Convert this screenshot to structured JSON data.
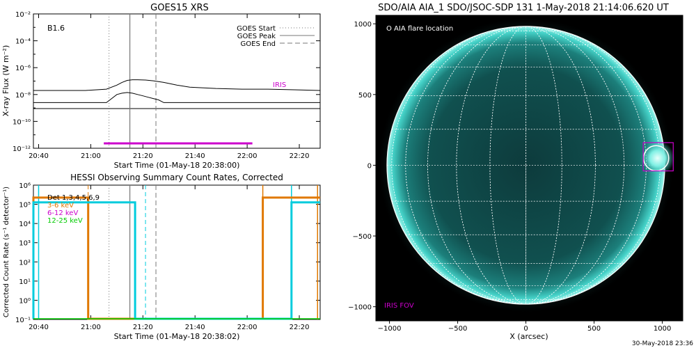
{
  "chart_data": [
    {
      "type": "line",
      "title": "GOES15 XRS",
      "xlabel": "Start Time (01-May-18 20:38:00)",
      "ylabel": "X-ray Flux (W m⁻²)",
      "annotation": "B1.6",
      "x_ticks": [
        "20:40",
        "21:00",
        "21:20",
        "21:40",
        "22:00",
        "22:20"
      ],
      "y_ticks": [
        "10⁻¹²",
        "10⁻¹⁰",
        "10⁻⁸",
        "10⁻⁶",
        "10⁻⁴",
        "10⁻²"
      ],
      "ylim_log10": [
        -12,
        -2
      ],
      "xlim_min": [
        0,
        110
      ],
      "legend": [
        "GOES Start",
        "GOES Peak",
        "GOES End"
      ],
      "legend_position": "top-right",
      "markers_min": {
        "start": 29,
        "peak": 37,
        "end": 47
      },
      "iris_label": "IRIS",
      "iris_interval_min": [
        27,
        84
      ],
      "iris_color": "#cc00cc",
      "series": [
        {
          "x": [
            0,
            10,
            20,
            28,
            32,
            34,
            36,
            38,
            40,
            43,
            46,
            50,
            55,
            60,
            70,
            80,
            90,
            100,
            110
          ],
          "y": [
            -7.7,
            -7.7,
            -7.7,
            -7.6,
            -7.3,
            -7.1,
            -6.95,
            -6.9,
            -6.9,
            -6.92,
            -6.98,
            -7.1,
            -7.3,
            -7.45,
            -7.55,
            -7.6,
            -7.6,
            -7.65,
            -7.7
          ]
        },
        {
          "x": [
            0,
            10,
            20,
            28,
            30,
            32,
            34,
            36,
            38,
            40,
            42,
            44,
            46,
            48,
            50,
            55,
            60,
            70,
            80,
            90,
            100,
            110
          ],
          "y": [
            -8.6,
            -8.6,
            -8.6,
            -8.6,
            -8.3,
            -8.0,
            -7.9,
            -7.85,
            -7.9,
            -8.0,
            -8.1,
            -8.2,
            -8.3,
            -8.4,
            -8.6,
            -8.6,
            -8.6,
            -8.6,
            -8.6,
            -8.6,
            -8.6,
            -8.6
          ]
        }
      ]
    },
    {
      "type": "line",
      "title": "HESSI Observing Summary Count Rates, Corrected",
      "xlabel": "Start Time (01-May-18 20:38:02)",
      "ylabel": "Corrected Count Rate (s⁻¹ detector⁻¹)",
      "x_ticks": [
        "20:40",
        "21:00",
        "21:20",
        "21:40",
        "22:00",
        "22:20"
      ],
      "y_ticks": [
        "10⁻¹",
        "10⁰",
        "10¹",
        "10²",
        "10³",
        "10⁴",
        "10⁵",
        "10⁶"
      ],
      "ylim_log10": [
        -1,
        6
      ],
      "xlim_min": [
        0,
        110
      ],
      "legend": [
        {
          "label": "Det 1,3,4,5,6,9",
          "color": "#000000"
        },
        {
          "label": "3-6 keV",
          "color": "#e07800"
        },
        {
          "label": "6-12 keV",
          "color": "#cc00cc"
        },
        {
          "label": "12-25 keV",
          "color": "#00cc00"
        }
      ],
      "markers_min": {
        "start": 29,
        "peak": 37,
        "end": 47
      },
      "series": [
        {
          "name": "3-6 keV",
          "x": [
            0,
            0,
            21,
            21,
            88,
            88,
            110
          ],
          "y": [
            -1,
            5.35,
            5.35,
            -1,
            -1,
            5.35,
            5.35
          ]
        },
        {
          "name": "6-12 keV",
          "x": [
            0,
            0,
            39,
            39,
            99,
            99,
            110
          ],
          "y": [
            -1,
            5.1,
            5.1,
            -1,
            -1,
            5.1,
            5.1
          ]
        },
        {
          "name": "12-25 keV",
          "x": [
            0,
            110
          ],
          "y": [
            -1,
            -1
          ]
        }
      ],
      "dashed_lines_min": [
        {
          "x": 21,
          "color": "#e07800"
        },
        {
          "x": 43,
          "color": "#00ccdd"
        }
      ],
      "solid_lines_min": [
        {
          "x": 2,
          "color": "#00ccdd"
        },
        {
          "x": 88,
          "color": "#e07800"
        },
        {
          "x": 99,
          "color": "#00ccdd"
        },
        {
          "x": 109,
          "color": "#e07800"
        }
      ]
    },
    {
      "type": "image",
      "title": "SDO/AIA AIA_1 SDO/JSOC-SDP 131  1-May-2018 21:14:06.620 UT",
      "xlabel": "X (arcsec)",
      "x_ticks": [
        "−1000",
        "−500",
        "0",
        "500",
        "1000"
      ],
      "y_ticks": [
        "1000",
        "500",
        "0",
        "−500",
        "−1000"
      ],
      "xlim": [
        -1100,
        1150
      ],
      "ylim": [
        -1100,
        1060
      ],
      "legend_text": "O AIA flare location",
      "iris_fov_label": "IRIS FOV",
      "flare_location": [
        955,
        50
      ],
      "flare_radius": 115,
      "iris_fov": {
        "x": [
          860,
          1080
        ],
        "y": [
          -40,
          160
        ]
      },
      "disk_radius": 1000,
      "timestamp": "30-May-2018 23:36"
    }
  ]
}
